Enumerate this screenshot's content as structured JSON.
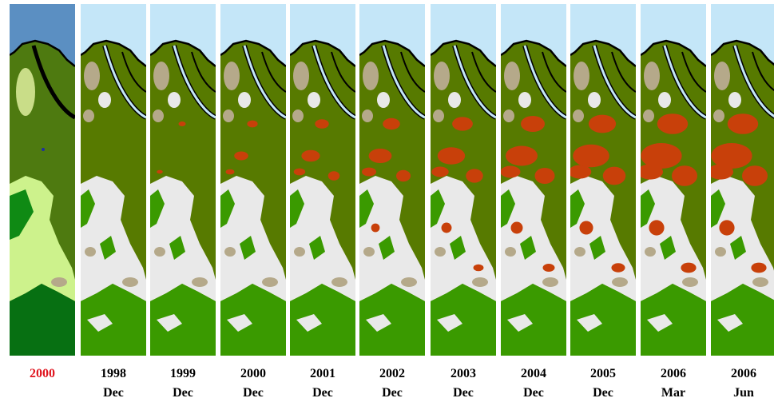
{
  "panels": [
    {
      "year": "2000"
    },
    {
      "year": "1998",
      "month": "Dec"
    },
    {
      "year": "1999",
      "month": "Dec"
    },
    {
      "year": "2000",
      "month": "Dec"
    },
    {
      "year": "2001",
      "month": "Dec"
    },
    {
      "year": "2002",
      "month": "Dec"
    },
    {
      "year": "2003",
      "month": "Dec"
    },
    {
      "year": "2004",
      "month": "Dec"
    },
    {
      "year": "2005",
      "month": "Dec"
    },
    {
      "year": "2006",
      "month": "Mar"
    },
    {
      "year": "2006",
      "month": "Jun"
    }
  ]
}
